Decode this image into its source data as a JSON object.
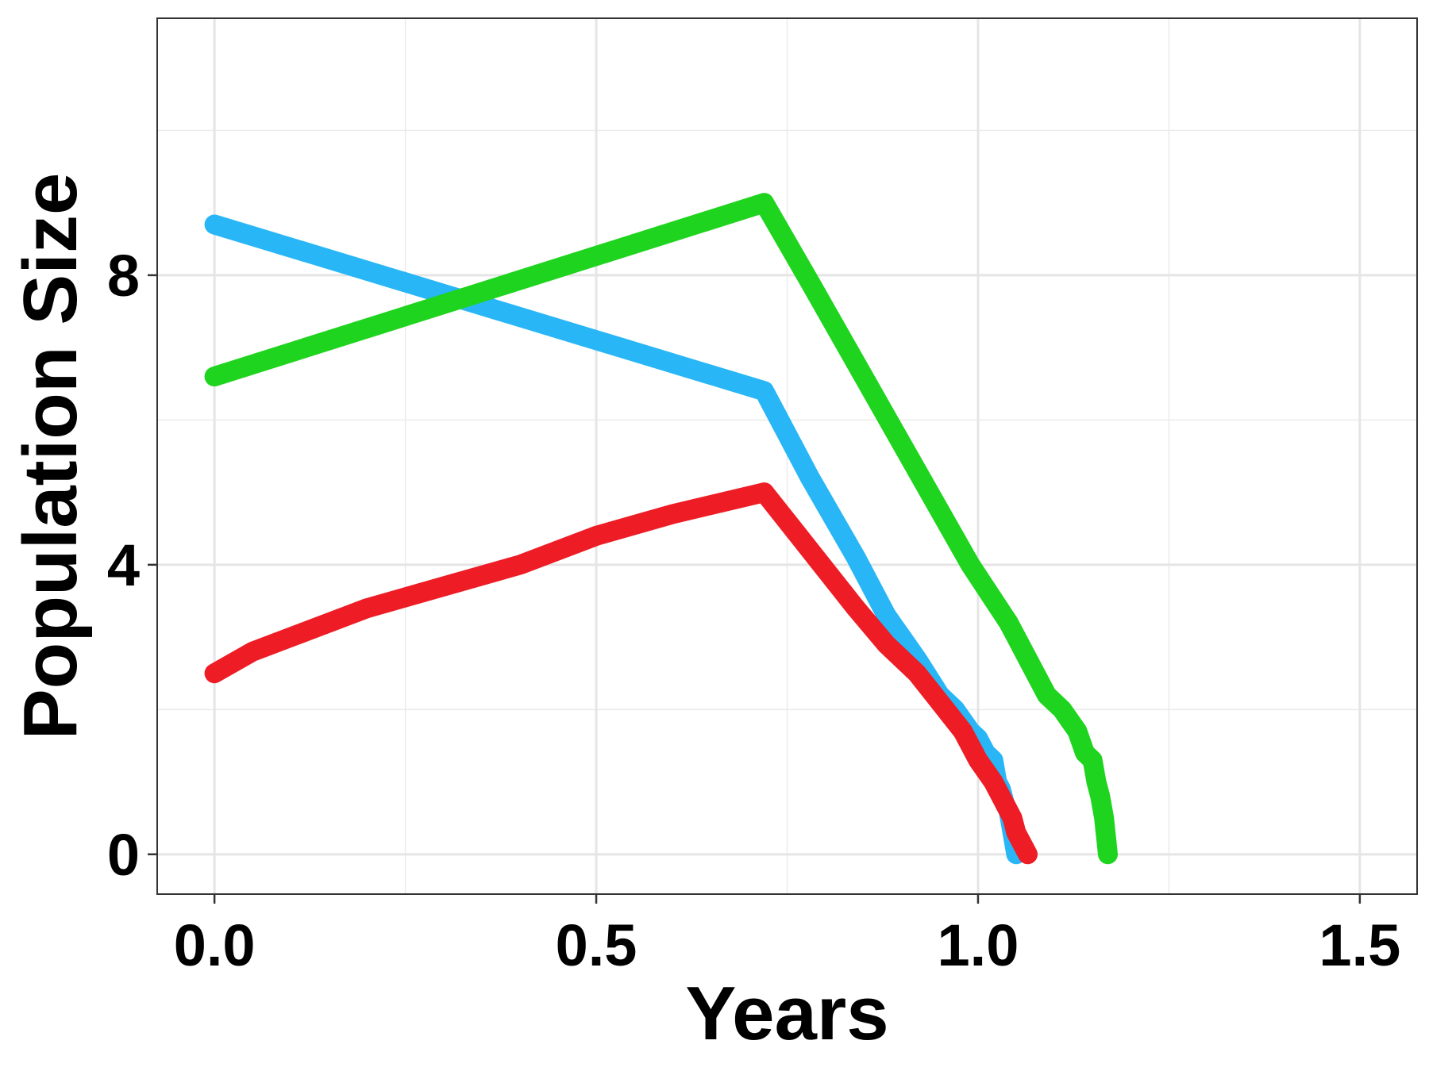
{
  "chart_data": {
    "type": "line",
    "title": "",
    "xlabel": "Years",
    "ylabel": "Population Size",
    "xlim": [
      -0.075,
      1.575
    ],
    "ylim": [
      -0.55,
      11.55
    ],
    "x_major_ticks": [
      0.0,
      0.5,
      1.0,
      1.5
    ],
    "x_tick_labels": [
      "0.0",
      "0.5",
      "1.0",
      "1.5"
    ],
    "x_minor_ticks": [
      0.25,
      0.75,
      1.25
    ],
    "y_major_ticks": [
      0,
      4,
      8
    ],
    "y_tick_labels": [
      "0",
      "4",
      "8"
    ],
    "y_minor_ticks": [
      2,
      6,
      10
    ],
    "grid": true,
    "legend": "none",
    "series": [
      {
        "color": "#29B6F6",
        "x": [
          0.0,
          0.72,
          0.78,
          0.84,
          0.88,
          0.92,
          0.95,
          0.97,
          0.99,
          1.0,
          1.01,
          1.02,
          1.025,
          1.03,
          1.035,
          1.04,
          1.045,
          1.05
        ],
        "y": [
          8.7,
          6.4,
          5.2,
          4.1,
          3.3,
          2.7,
          2.2,
          2.0,
          1.7,
          1.6,
          1.4,
          1.3,
          1.0,
          0.9,
          0.7,
          0.6,
          0.3,
          0.0
        ]
      },
      {
        "color": "#1ED41E",
        "x": [
          0.0,
          0.72,
          0.78,
          0.85,
          0.92,
          0.99,
          1.04,
          1.07,
          1.09,
          1.11,
          1.13,
          1.14,
          1.15,
          1.155,
          1.16,
          1.165,
          1.17
        ],
        "y": [
          6.6,
          9.0,
          7.9,
          6.6,
          5.3,
          4.0,
          3.2,
          2.6,
          2.2,
          2.0,
          1.7,
          1.4,
          1.3,
          1.0,
          0.8,
          0.5,
          0.0
        ]
      },
      {
        "color": "#EE1C25",
        "x": [
          0.0,
          0.05,
          0.1,
          0.2,
          0.3,
          0.4,
          0.5,
          0.6,
          0.72,
          0.78,
          0.84,
          0.88,
          0.92,
          0.95,
          0.98,
          1.0,
          1.02,
          1.035,
          1.045,
          1.05,
          1.055,
          1.06,
          1.065
        ],
        "y": [
          2.5,
          2.8,
          3.0,
          3.4,
          3.7,
          4.0,
          4.4,
          4.7,
          5.0,
          4.2,
          3.4,
          2.9,
          2.5,
          2.1,
          1.7,
          1.3,
          1.0,
          0.7,
          0.5,
          0.3,
          0.2,
          0.1,
          0.0
        ]
      }
    ]
  }
}
